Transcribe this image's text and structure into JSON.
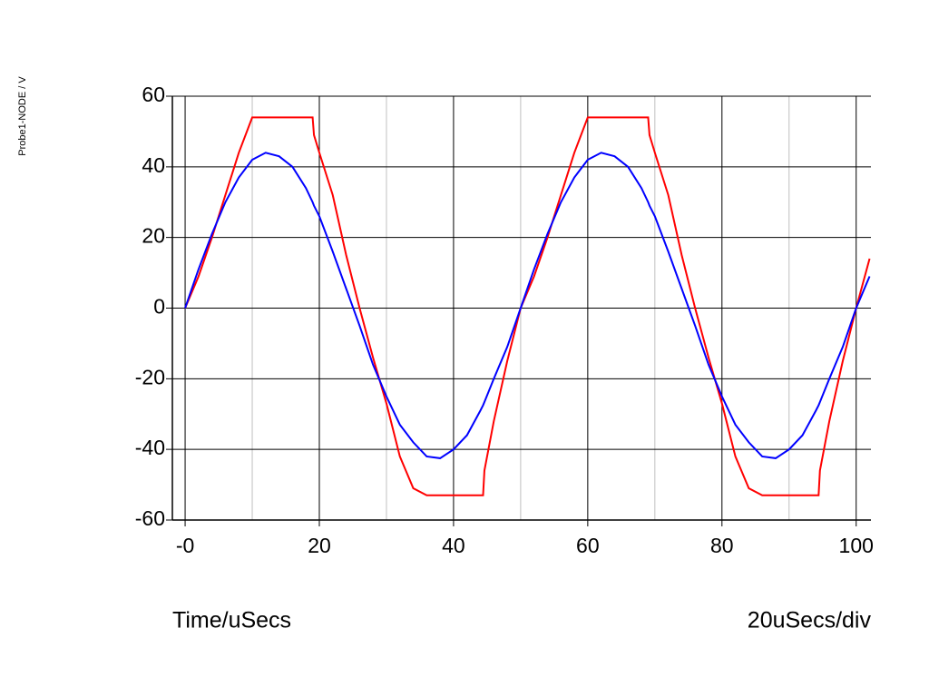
{
  "chart_data": {
    "type": "line",
    "y_label": "Probe1-NODE / V",
    "x_label": "Time/uSecs",
    "annotation": "20uSecs/div",
    "x": [
      0,
      2,
      4,
      6,
      8,
      10,
      12,
      14,
      16,
      18,
      19,
      19.2,
      20,
      22,
      24,
      26,
      28,
      30,
      32,
      34,
      36,
      38,
      40,
      42,
      44,
      44.4,
      44.6,
      46,
      48,
      50,
      52,
      54,
      56,
      58,
      60,
      62,
      64,
      66,
      68,
      69,
      69.2,
      70,
      72,
      74,
      76,
      78,
      80,
      82,
      84,
      86,
      88,
      90,
      92,
      94,
      94.4,
      94.6,
      96,
      98,
      100,
      102
    ],
    "series": [
      {
        "color": "#ff0000",
        "values": [
          0,
          9,
          20,
          32,
          44,
          54,
          54,
          54,
          54,
          54,
          54,
          49,
          44,
          32,
          15,
          0,
          -14,
          -27,
          -42,
          -51,
          -53,
          -53,
          -53,
          -53,
          -53,
          -53,
          -46,
          -32,
          -15,
          0,
          9,
          20,
          32,
          44,
          54,
          54,
          54,
          54,
          54,
          54,
          49,
          44,
          32,
          15,
          0,
          -14,
          -27,
          -42,
          -51,
          -53,
          -53,
          -53,
          -53,
          -53,
          -53,
          -46,
          -32,
          -15,
          0,
          14
        ]
      },
      {
        "color": "#0000ff",
        "values": [
          0,
          11,
          21,
          30,
          37,
          42,
          44,
          43,
          40,
          34,
          30,
          29,
          26,
          16,
          5.5,
          -5,
          -16,
          -25,
          -33,
          -38,
          -42,
          -42.5,
          -40,
          -36,
          -29,
          -27.5,
          -26.6,
          -20,
          -11,
          0,
          11,
          21,
          30,
          37,
          42,
          44,
          43,
          40,
          34,
          30,
          29,
          26,
          16,
          5.5,
          -5,
          -16,
          -25,
          -33,
          -38,
          -42,
          -42.5,
          -40,
          -36,
          -29,
          -27.5,
          -26.6,
          -20,
          -11,
          0,
          9
        ]
      }
    ],
    "xlim": [
      -1.9,
      102.2
    ],
    "ylim": [
      -60,
      60
    ],
    "xticks": [
      {
        "value": 0,
        "label": "-0"
      },
      20,
      40,
      60,
      80,
      100
    ],
    "minor_xticks": [
      10,
      30,
      50,
      70,
      90
    ],
    "yticks": [
      -60,
      -40,
      -20,
      0,
      20,
      40,
      60
    ],
    "grid": true
  }
}
